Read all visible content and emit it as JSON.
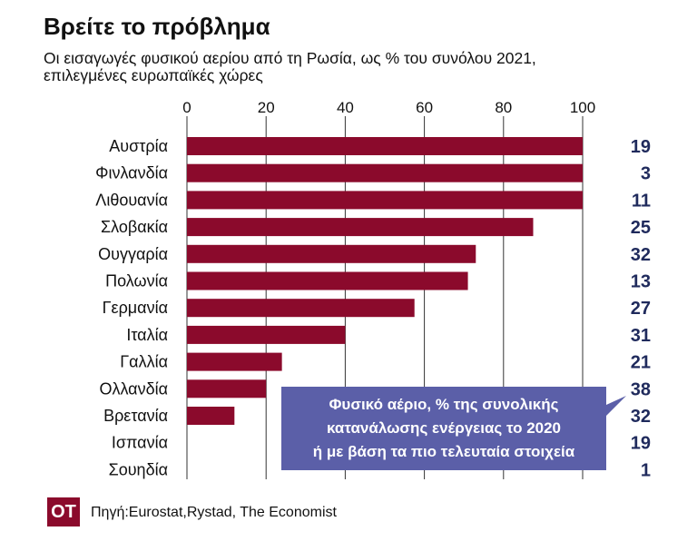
{
  "title": "Βρείτε το πρόβλημα",
  "subtitle_lines": [
    "Οι εισαγωγές φυσικού αερίου από τη Ρωσία, ως % του συνόλου 2021,",
    "επιλεγμένες ευρωπαϊκές χώρες"
  ],
  "source": "Πηγή:Eurostat,Rystad, The Economist",
  "logo": "OT",
  "colors": {
    "bar": "#8b0a2c",
    "secondary_value": "#1f2a5c",
    "callout_bg": "#5b5fa8",
    "grid": "#333333"
  },
  "chart_data": [
    {
      "type": "bar",
      "orientation": "horizontal",
      "xlim": [
        0,
        100
      ],
      "xticks": [
        "0",
        "20",
        "40",
        "60",
        "80",
        "100"
      ],
      "tick_values": [
        0,
        20,
        40,
        60,
        80,
        100
      ],
      "grid": true,
      "categories": [
        "Αυστρία",
        "Φινλανδία",
        "Λιθουανία",
        "Σλοβακία",
        "Ουγγαρία",
        "Πολωνία",
        "Γερμανία",
        "Ιταλία",
        "Γαλλία",
        "Ολλανδία",
        "Βρετανία",
        "Ισπανία",
        "Σουηδία"
      ],
      "values": [
        100,
        100,
        100,
        87.5,
        73,
        71,
        57.5,
        40,
        24,
        20,
        12,
        0,
        0
      ]
    },
    {
      "type": "table",
      "categories": [
        "Αυστρία",
        "Φινλανδία",
        "Λιθουανία",
        "Σλοβακία",
        "Ουγγαρία",
        "Πολωνία",
        "Γερμανία",
        "Ιταλία",
        "Γαλλία",
        "Ολλανδία",
        "Βρετανία",
        "Ισπανία",
        "Σουηδία"
      ],
      "values": [
        19,
        3,
        11,
        25,
        32,
        13,
        27,
        31,
        21,
        38,
        32,
        19,
        1
      ],
      "annotation_lines": [
        "Φυσικό αέριο, % της συνολικής",
        "κατανάλωσης ενέργειας το 2020",
        "ή με βάση τα πιο τελευταία στοιχεία"
      ]
    }
  ]
}
